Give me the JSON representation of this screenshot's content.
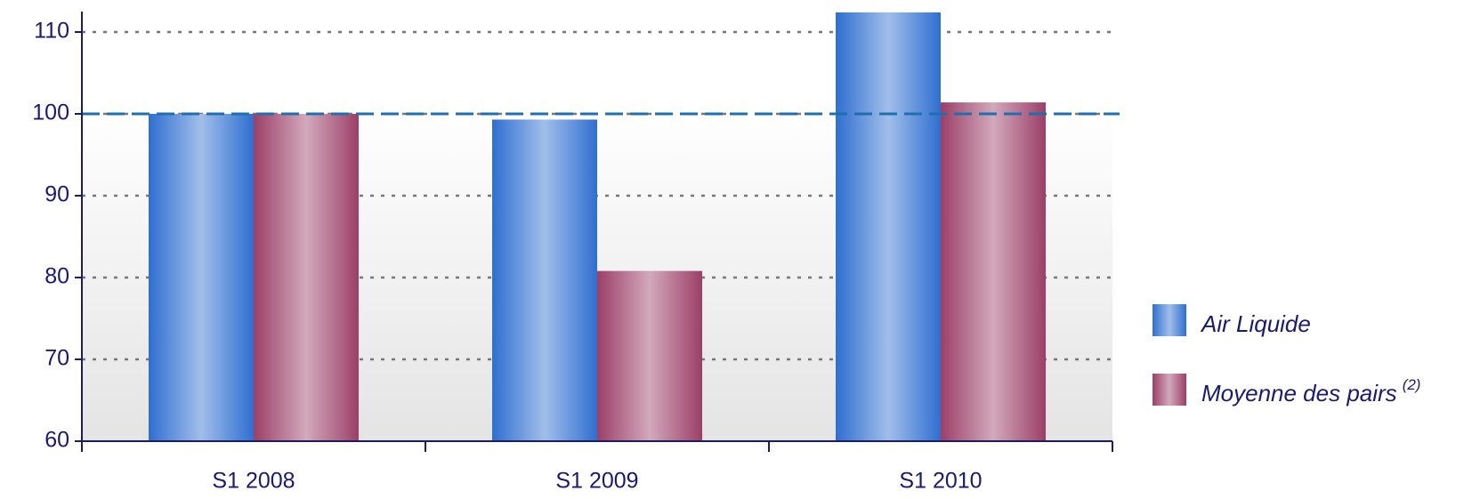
{
  "chart_data": {
    "type": "bar",
    "categories": [
      "S1 2008",
      "S1 2009",
      "S1 2010"
    ],
    "series": [
      {
        "name": "Air Liquide",
        "color": "#2f6fd0",
        "values": [
          100,
          99.3,
          112.4
        ]
      },
      {
        "name": "Moyenne des pairs",
        "color": "#9c3f68",
        "values": [
          100,
          80.8,
          101.4
        ]
      }
    ],
    "legend_note": "(2)",
    "reference_line": 100,
    "ylim": [
      60,
      112.5
    ],
    "yticks": [
      60,
      70,
      80,
      90,
      100,
      110
    ],
    "grid": true,
    "legend": "right"
  }
}
